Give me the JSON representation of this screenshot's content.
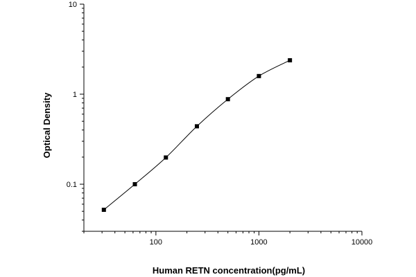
{
  "chart_data": {
    "type": "scatter",
    "xlabel": "Human RETN concentration(pg/mL)",
    "ylabel": "Optical Density",
    "xscale": "log",
    "yscale": "log",
    "xlim": [
      20,
      10000
    ],
    "ylim": [
      0.03,
      10
    ],
    "x_ticks": [
      {
        "value": 100,
        "label": "100"
      },
      {
        "value": 1000,
        "label": "1000"
      },
      {
        "value": 10000,
        "label": "10000"
      }
    ],
    "y_ticks": [
      {
        "value": 0.1,
        "label": "0.1"
      },
      {
        "value": 1,
        "label": "1"
      },
      {
        "value": 10,
        "label": "10"
      }
    ],
    "grid": false,
    "curve": "fitted smooth line through points",
    "points": [
      {
        "x": 31.25,
        "y": 0.052
      },
      {
        "x": 62.5,
        "y": 0.1
      },
      {
        "x": 125,
        "y": 0.198
      },
      {
        "x": 250,
        "y": 0.44
      },
      {
        "x": 500,
        "y": 0.88
      },
      {
        "x": 1000,
        "y": 1.59
      },
      {
        "x": 2000,
        "y": 2.38
      }
    ]
  }
}
